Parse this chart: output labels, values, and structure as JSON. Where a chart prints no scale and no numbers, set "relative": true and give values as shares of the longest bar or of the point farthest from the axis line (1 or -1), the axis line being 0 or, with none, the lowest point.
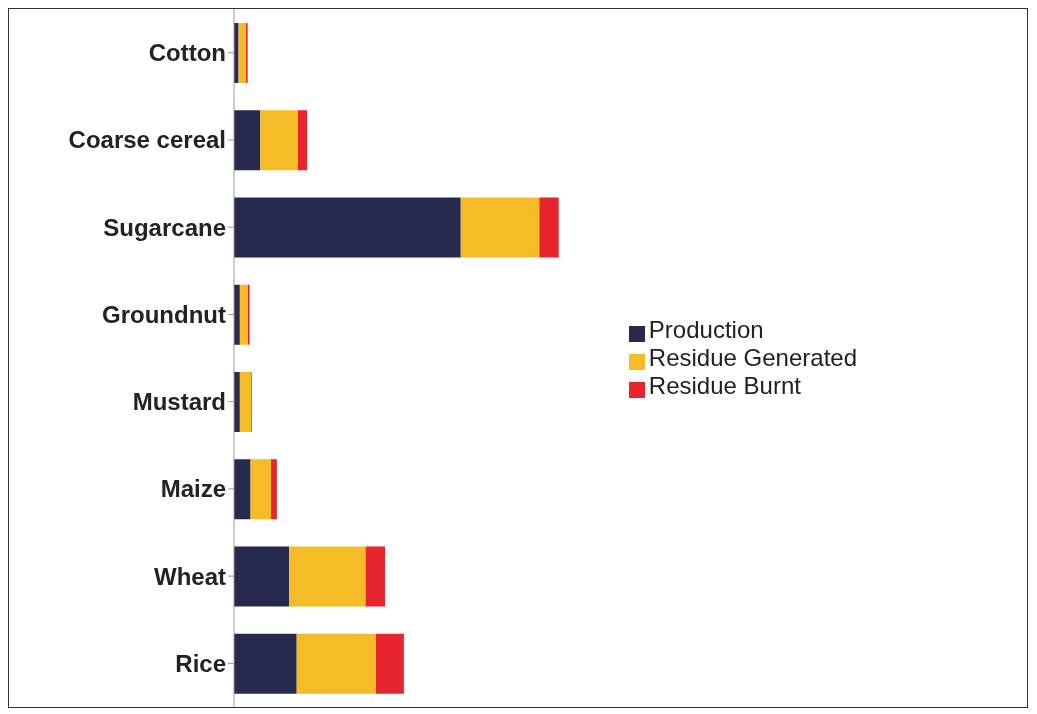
{
  "chart_data": {
    "type": "bar",
    "orientation": "horizontal",
    "stacked": true,
    "relative": true,
    "legend": "right",
    "categories": [
      "Cotton",
      "Coarse cereal",
      "Sugarcane",
      "Groundnut",
      "Mustard",
      "Maize",
      "Wheat",
      "Rice"
    ],
    "series": [
      {
        "name": "Production",
        "color": "#262a4f",
        "values": [
          0.014,
          0.081,
          0.698,
          0.018,
          0.018,
          0.051,
          0.17,
          0.193
        ]
      },
      {
        "name": "Residue Generated",
        "color": "#f5bc27",
        "values": [
          0.023,
          0.116,
          0.242,
          0.025,
          0.035,
          0.063,
          0.235,
          0.244
        ]
      },
      {
        "name": "Residue Burnt",
        "color": "#e8252f",
        "values": [
          0.005,
          0.028,
          0.06,
          0.005,
          0.002,
          0.018,
          0.06,
          0.086
        ]
      }
    ]
  }
}
